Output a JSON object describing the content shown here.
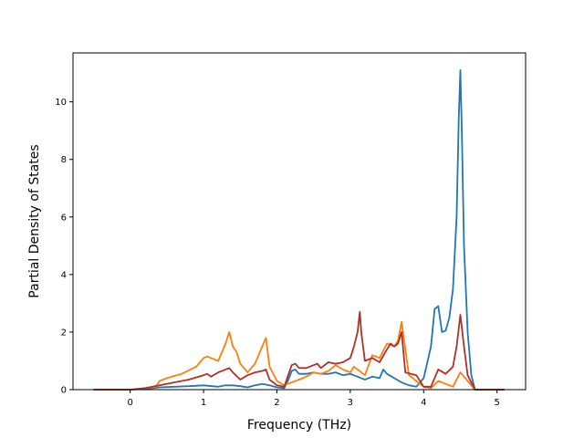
{
  "chart_data": {
    "type": "line",
    "title": "",
    "xlabel": "Frequency (THz)",
    "ylabel": "Partial Density of States",
    "xlim": [
      -0.78,
      5.39
    ],
    "ylim": [
      0,
      11.7
    ],
    "xticks": [
      0,
      1,
      2,
      3,
      4,
      5
    ],
    "xtick_labels": [
      "0",
      "1",
      "2",
      "3",
      "4",
      "5"
    ],
    "yticks": [
      0,
      2,
      4,
      6,
      8,
      10
    ],
    "ytick_labels": [
      "0",
      "2",
      "4",
      "6",
      "8",
      "10"
    ],
    "grid": false,
    "series": [
      {
        "color": "#1f77b4",
        "x": [
          -0.5,
          0.0,
          0.2,
          0.4,
          0.6,
          0.8,
          1.0,
          1.2,
          1.3,
          1.4,
          1.5,
          1.6,
          1.7,
          1.8,
          1.9,
          2.0,
          2.1,
          2.15,
          2.2,
          2.25,
          2.3,
          2.4,
          2.5,
          2.6,
          2.7,
          2.8,
          2.9,
          3.0,
          3.1,
          3.2,
          3.3,
          3.4,
          3.45,
          3.5,
          3.6,
          3.7,
          3.8,
          3.9,
          4.0,
          4.1,
          4.15,
          4.2,
          4.25,
          4.3,
          4.35,
          4.4,
          4.45,
          4.48,
          4.5,
          4.52,
          4.55,
          4.6,
          4.65,
          4.7,
          5.1
        ],
        "y": [
          0,
          0,
          0.02,
          0.08,
          0.1,
          0.12,
          0.15,
          0.1,
          0.15,
          0.15,
          0.12,
          0.08,
          0.15,
          0.2,
          0.15,
          0.08,
          0.05,
          0.3,
          0.65,
          0.7,
          0.55,
          0.55,
          0.6,
          0.55,
          0.55,
          0.6,
          0.5,
          0.55,
          0.45,
          0.35,
          0.45,
          0.4,
          0.7,
          0.55,
          0.4,
          0.25,
          0.15,
          0.1,
          0.4,
          1.5,
          2.8,
          2.9,
          2.0,
          2.05,
          2.5,
          3.5,
          6.0,
          9.5,
          11.1,
          9.0,
          5.0,
          2.0,
          0.5,
          0,
          0
        ]
      },
      {
        "color": "#ff7f0e",
        "x": [
          -0.5,
          0.0,
          0.2,
          0.35,
          0.4,
          0.5,
          0.7,
          0.9,
          1.0,
          1.05,
          1.1,
          1.2,
          1.3,
          1.35,
          1.4,
          1.45,
          1.5,
          1.6,
          1.7,
          1.8,
          1.85,
          1.9,
          2.0,
          2.1,
          2.2,
          2.3,
          2.4,
          2.5,
          2.6,
          2.7,
          2.8,
          2.9,
          3.0,
          3.05,
          3.1,
          3.2,
          3.3,
          3.4,
          3.5,
          3.6,
          3.65,
          3.7,
          3.75,
          3.8,
          3.9,
          4.0,
          4.1,
          4.2,
          4.3,
          4.4,
          4.48,
          4.5,
          4.6,
          4.7,
          5.1
        ],
        "y": [
          0,
          0,
          0.05,
          0.1,
          0.3,
          0.4,
          0.55,
          0.8,
          1.1,
          1.15,
          1.1,
          1.0,
          1.6,
          2.0,
          1.5,
          1.3,
          0.9,
          0.6,
          0.9,
          1.5,
          1.8,
          0.8,
          0.3,
          0.15,
          0.25,
          0.35,
          0.45,
          0.6,
          0.55,
          0.65,
          0.85,
          0.7,
          0.6,
          0.8,
          0.7,
          0.5,
          1.2,
          1.1,
          1.6,
          1.5,
          1.7,
          2.35,
          1.4,
          0.5,
          0.3,
          0.1,
          0.05,
          0.3,
          0.2,
          0.1,
          0.5,
          0.6,
          0.3,
          0,
          0
        ]
      },
      {
        "color": "#b03028",
        "x": [
          -0.5,
          0.0,
          0.2,
          0.4,
          0.6,
          0.8,
          1.0,
          1.05,
          1.1,
          1.2,
          1.3,
          1.35,
          1.4,
          1.5,
          1.6,
          1.7,
          1.8,
          1.85,
          1.9,
          2.0,
          2.1,
          2.2,
          2.25,
          2.3,
          2.4,
          2.5,
          2.55,
          2.6,
          2.7,
          2.8,
          2.9,
          3.0,
          3.05,
          3.1,
          3.13,
          3.15,
          3.2,
          3.3,
          3.4,
          3.5,
          3.55,
          3.6,
          3.65,
          3.7,
          3.75,
          3.9,
          4.0,
          4.1,
          4.2,
          4.3,
          4.4,
          4.45,
          4.5,
          4.55,
          4.6,
          4.7,
          5.1
        ],
        "y": [
          0,
          0,
          0.05,
          0.15,
          0.25,
          0.35,
          0.5,
          0.55,
          0.45,
          0.6,
          0.7,
          0.75,
          0.6,
          0.35,
          0.5,
          0.6,
          0.65,
          0.7,
          0.35,
          0.15,
          0.1,
          0.85,
          0.9,
          0.75,
          0.75,
          0.85,
          0.9,
          0.75,
          0.95,
          0.9,
          0.95,
          1.1,
          1.5,
          2.0,
          2.7,
          2.0,
          1.0,
          1.1,
          0.95,
          1.4,
          1.6,
          1.5,
          1.6,
          2.0,
          0.6,
          0.5,
          0.1,
          0.1,
          0.7,
          0.55,
          0.8,
          1.5,
          2.6,
          1.5,
          0.5,
          0,
          0
        ]
      }
    ]
  }
}
